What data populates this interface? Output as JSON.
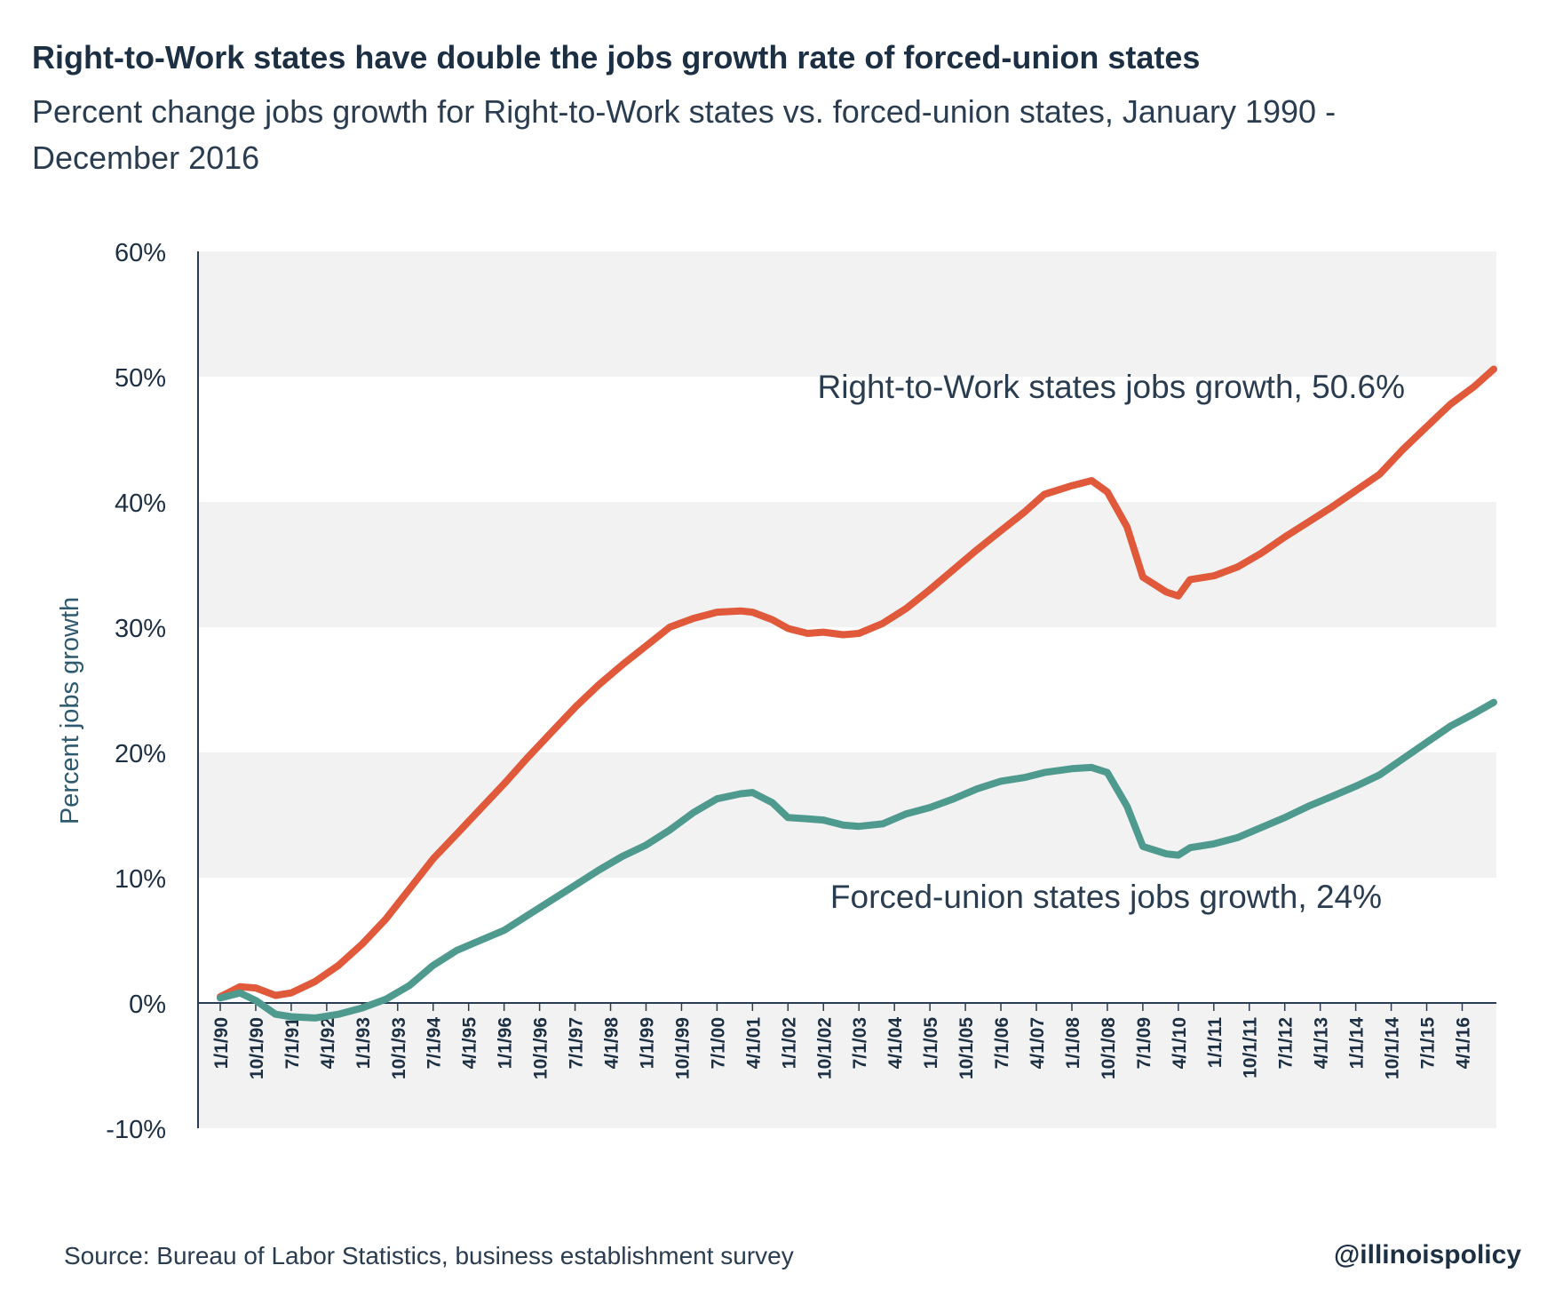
{
  "chart_data": {
    "type": "line",
    "title": "Right-to-Work states have double the jobs growth rate of forced-union states",
    "subtitle": "Percent change jobs growth for Right-to-Work states vs. forced-union states, January 1990 - December 2016",
    "ylabel": "Percent jobs growth",
    "xlabel": "",
    "ylim": [
      -10,
      60
    ],
    "yticks": [
      "60%",
      "50%",
      "40%",
      "30%",
      "20%",
      "10%",
      "0%",
      "-10%"
    ],
    "ytick_values": [
      60,
      50,
      40,
      30,
      20,
      10,
      0,
      -10
    ],
    "xlim": [
      "1990-01",
      "2016-12"
    ],
    "xticks": [
      "1/1/90",
      "10/1/90",
      "7/1/91",
      "4/1/92",
      "1/1/93",
      "10/1/93",
      "7/1/94",
      "4/1/95",
      "1/1/96",
      "10/1/96",
      "7/1/97",
      "4/1/98",
      "1/1/99",
      "10/1/99",
      "7/1/00",
      "4/1/01",
      "1/1/02",
      "10/1/02",
      "7/1/03",
      "4/1/04",
      "1/1/05",
      "10/1/05",
      "7/1/06",
      "4/1/07",
      "1/1/08",
      "10/1/08",
      "7/1/09",
      "4/1/10",
      "1/1/11",
      "10/1/11",
      "7/1/12",
      "4/1/13",
      "1/1/14",
      "10/1/14",
      "7/1/15",
      "4/1/16"
    ],
    "xtick_dates": [
      "1990-01",
      "1990-10",
      "1991-07",
      "1992-04",
      "1993-01",
      "1993-10",
      "1994-07",
      "1995-04",
      "1996-01",
      "1996-10",
      "1997-07",
      "1998-04",
      "1999-01",
      "1999-10",
      "2000-07",
      "2001-04",
      "2002-01",
      "2002-10",
      "2003-07",
      "2004-04",
      "2005-01",
      "2005-10",
      "2006-07",
      "2007-04",
      "2008-01",
      "2008-10",
      "2009-07",
      "2010-04",
      "2011-01",
      "2011-10",
      "2012-07",
      "2013-04",
      "2014-01",
      "2014-10",
      "2015-07",
      "2016-04"
    ],
    "grid": "alternating horizontal bands",
    "series": [
      {
        "name": "Right-to-Work states jobs growth, 50.6%",
        "color": "#e0593a",
        "x": [
          "1990-01",
          "1990-06",
          "1990-10",
          "1991-03",
          "1991-07",
          "1992-01",
          "1992-07",
          "1993-01",
          "1993-07",
          "1994-01",
          "1994-07",
          "1995-01",
          "1995-07",
          "1996-01",
          "1996-07",
          "1997-01",
          "1997-07",
          "1998-01",
          "1998-07",
          "1999-01",
          "1999-07",
          "2000-01",
          "2000-07",
          "2001-01",
          "2001-04",
          "2001-09",
          "2002-01",
          "2002-06",
          "2002-10",
          "2003-03",
          "2003-07",
          "2004-01",
          "2004-07",
          "2005-01",
          "2005-07",
          "2006-01",
          "2006-07",
          "2007-01",
          "2007-06",
          "2008-01",
          "2008-06",
          "2008-10",
          "2009-03",
          "2009-07",
          "2010-01",
          "2010-04",
          "2010-07",
          "2011-01",
          "2011-07",
          "2012-01",
          "2012-07",
          "2013-01",
          "2013-07",
          "2014-01",
          "2014-07",
          "2015-01",
          "2015-07",
          "2016-01",
          "2016-07",
          "2016-12"
        ],
        "values": [
          0.5,
          1.3,
          1.2,
          0.6,
          0.8,
          1.7,
          3.0,
          4.7,
          6.7,
          9.1,
          11.5,
          13.5,
          15.5,
          17.5,
          19.6,
          21.6,
          23.6,
          25.4,
          27.0,
          28.5,
          30.0,
          30.7,
          31.2,
          31.3,
          31.2,
          30.6,
          29.9,
          29.5,
          29.6,
          29.4,
          29.5,
          30.3,
          31.5,
          33.0,
          34.6,
          36.2,
          37.7,
          39.2,
          40.6,
          41.3,
          41.7,
          40.8,
          38.0,
          34.0,
          32.8,
          32.5,
          33.8,
          34.1,
          34.8,
          35.9,
          37.2,
          38.4,
          39.6,
          40.9,
          42.2,
          44.2,
          46.0,
          47.8,
          49.2,
          50.6
        ]
      },
      {
        "name": "Forced-union states jobs growth, 24%",
        "color": "#4e9a8f",
        "x": [
          "1990-01",
          "1990-06",
          "1990-10",
          "1991-03",
          "1991-07",
          "1992-01",
          "1992-07",
          "1993-01",
          "1993-07",
          "1994-01",
          "1994-07",
          "1995-01",
          "1995-07",
          "1996-01",
          "1996-07",
          "1997-01",
          "1997-07",
          "1998-01",
          "1998-07",
          "1999-01",
          "1999-07",
          "2000-01",
          "2000-07",
          "2001-01",
          "2001-04",
          "2001-09",
          "2002-01",
          "2002-06",
          "2002-10",
          "2003-03",
          "2003-07",
          "2004-01",
          "2004-07",
          "2005-01",
          "2005-07",
          "2006-01",
          "2006-07",
          "2007-01",
          "2007-06",
          "2008-01",
          "2008-06",
          "2008-10",
          "2009-03",
          "2009-07",
          "2010-01",
          "2010-04",
          "2010-07",
          "2011-01",
          "2011-07",
          "2012-01",
          "2012-07",
          "2013-01",
          "2013-07",
          "2014-01",
          "2014-07",
          "2015-01",
          "2015-07",
          "2016-01",
          "2016-07",
          "2016-12"
        ],
        "values": [
          0.4,
          0.8,
          0.2,
          -0.9,
          -1.1,
          -1.2,
          -0.9,
          -0.4,
          0.3,
          1.4,
          3.0,
          4.2,
          5.0,
          5.8,
          7.0,
          8.2,
          9.4,
          10.6,
          11.7,
          12.6,
          13.8,
          15.2,
          16.3,
          16.7,
          16.8,
          16.0,
          14.8,
          14.7,
          14.6,
          14.2,
          14.1,
          14.3,
          15.1,
          15.6,
          16.3,
          17.1,
          17.7,
          18.0,
          18.4,
          18.7,
          18.8,
          18.4,
          15.7,
          12.5,
          11.9,
          11.8,
          12.4,
          12.7,
          13.2,
          14.0,
          14.8,
          15.7,
          16.5,
          17.3,
          18.2,
          19.5,
          20.8,
          22.1,
          23.1,
          24.0
        ]
      }
    ],
    "annotations": [
      {
        "text": "Right-to-Work states jobs growth, 50.6%",
        "series": 0
      },
      {
        "text": "Forced-union states jobs growth, 24%",
        "series": 1
      }
    ],
    "source": "Source: Bureau of Labor Statistics, business establishment survey",
    "brand": "@illinoispolicy"
  }
}
